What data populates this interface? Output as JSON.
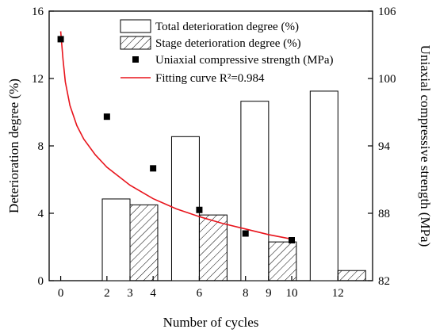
{
  "chart_data": {
    "type": "bar",
    "xlabel": "Number of cycles",
    "ylabel_left": "Deterioration degree (%)",
    "ylabel_right": "Uniaxial compressive strength (MPa)",
    "xlim": [
      -0.5,
      13.5
    ],
    "ylim_left": [
      0,
      16
    ],
    "ylim_right": [
      82,
      106
    ],
    "x_ticks": [
      0,
      2,
      3,
      4,
      6,
      8,
      9,
      10,
      12
    ],
    "y_left_ticks": [
      0,
      4,
      8,
      12,
      16
    ],
    "y_right_ticks": [
      82,
      88,
      94,
      100,
      106
    ],
    "legend_position": "top-center",
    "series": [
      {
        "name": "Total deterioration degree (%)",
        "kind": "bar",
        "axis": "left",
        "style": "open",
        "x": [
          3,
          6,
          9,
          12
        ],
        "values": [
          4.85,
          8.55,
          10.65,
          11.25
        ]
      },
      {
        "name": "Stage deterioration degree (%)",
        "kind": "bar",
        "axis": "left",
        "style": "hatched",
        "x": [
          3,
          6,
          9,
          12
        ],
        "values": [
          4.5,
          3.9,
          2.3,
          0.6
        ]
      },
      {
        "name": "Uniaxial compressive strength (MPa)",
        "kind": "scatter",
        "axis": "right",
        "marker": "square",
        "color": "#000000",
        "x": [
          0,
          2,
          4,
          6,
          8,
          10
        ],
        "values": [
          103.5,
          96.6,
          92.0,
          88.3,
          86.2,
          85.6
        ]
      },
      {
        "name": "Fitting curve R²=0.984",
        "kind": "line",
        "axis": "right",
        "color": "#e8141c",
        "x": [
          0,
          0.1,
          0.2,
          0.4,
          0.7,
          1,
          1.5,
          2,
          3,
          4,
          5,
          6,
          7,
          8,
          9,
          10
        ],
        "values": [
          104.2,
          101.7,
          99.7,
          97.6,
          95.8,
          94.6,
          93.2,
          92.1,
          90.5,
          89.3,
          88.4,
          87.7,
          87.1,
          86.6,
          86.1,
          85.7
        ]
      }
    ]
  }
}
